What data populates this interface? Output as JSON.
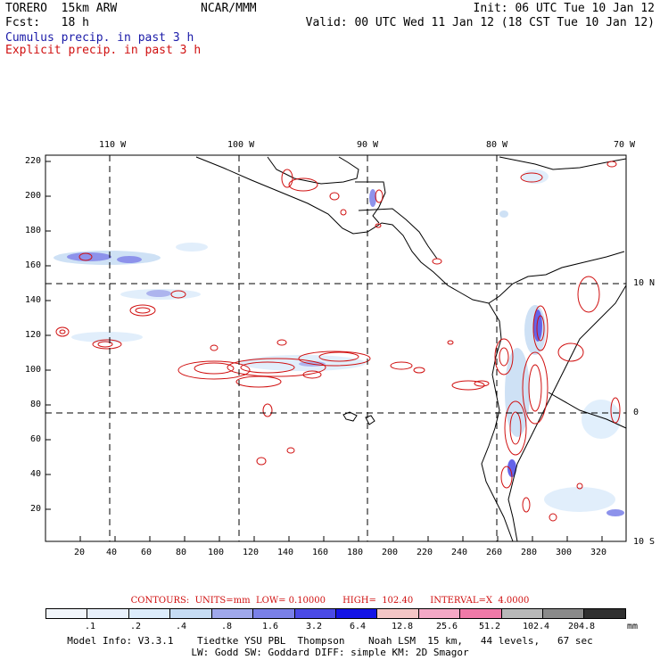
{
  "header": {
    "model_name": "TORERO  15km ARW",
    "org": "NCAR/MMM",
    "init": "Init: 06 UTC Tue 10 Jan 12",
    "fcst": "Fcst:   18 h",
    "valid": "Valid: 00 UTC Wed 11 Jan 12 (18 CST Tue 10 Jan 12)",
    "cumulus_label": "Cumulus precip. in past 3 h",
    "explicit_label": "Explicit precip. in past 3 h"
  },
  "colors": {
    "cumulus": "#1a1aa8",
    "explicit": "#d01010",
    "land_outline": "#000000",
    "grid": "#000000"
  },
  "map": {
    "lon_labels": [
      "110 W",
      "100 W",
      "90 W",
      "80 W",
      "70 W"
    ],
    "lat_labels": [
      "10 N",
      "0",
      "10 S"
    ],
    "y_ticks": [
      "220",
      "200",
      "180",
      "160",
      "140",
      "120",
      "100",
      "80",
      "60",
      "40",
      "20"
    ],
    "x_ticks": [
      "20",
      "40",
      "60",
      "80",
      "100",
      "120",
      "140",
      "160",
      "180",
      "200",
      "220",
      "240",
      "260",
      "280",
      "300",
      "320"
    ]
  },
  "contour_info": "CONTOURS:  UNITS=mm  LOW= 0.10000      HIGH=  102.40      INTERVAL=X  4.0000",
  "legend": {
    "unit": "mm",
    "colors": [
      "#ffffff",
      "#f2f6fb",
      "#e8f0fb",
      "#dcecfb",
      "#c6dcf4",
      "#9fa8ec",
      "#7a80e8",
      "#4a4ae6",
      "#1414e6",
      "#f4c6c6",
      "#f4a8c6",
      "#f07aa8",
      "#b8b8b8",
      "#8a8a8a",
      "#303030",
      "#d8a8f0"
    ],
    "values": [
      ".1",
      ".2",
      ".4",
      ".8",
      "1.6",
      "3.2",
      "6.4",
      "12.8",
      "25.6",
      "51.2",
      "102.4",
      "204.8"
    ]
  },
  "model_info": {
    "line1": "Model Info: V3.3.1    Tiedtke YSU PBL  Thompson    Noah LSM  15 km,   44 levels,   67 sec",
    "line2": "LW: Godd SW: Goddard DIFF: simple KM: 2D Smagor"
  }
}
